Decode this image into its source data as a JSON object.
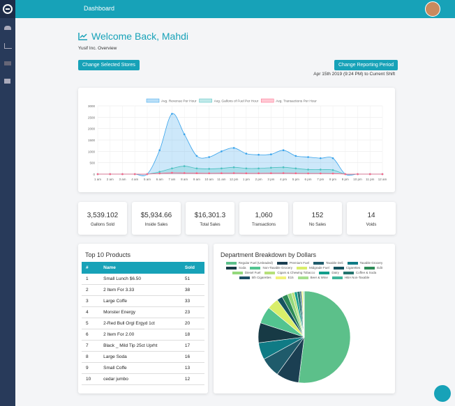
{
  "header": {
    "title": "Dashboard"
  },
  "welcome": {
    "title": "Welcome Back, Mahdi",
    "subtitle": "Yusif Inc. Overview"
  },
  "buttons": [
    "Change Selected Stores",
    "Change Reporting Period"
  ],
  "period": "Apr 15th 2019 (9:24 PM) to Current Shift",
  "chart_data": [
    {
      "type": "line",
      "categories": [
        "1 am",
        "2 am",
        "3 am",
        "4 am",
        "5 am",
        "6 am",
        "7 am",
        "8 am",
        "9 am",
        "10 am",
        "11 am",
        "12 pm",
        "1 pm",
        "2 pm",
        "3 pm",
        "4 pm",
        "5 pm",
        "6 pm",
        "7 pm",
        "8 pm",
        "9 pm",
        "10 pm",
        "11 pm",
        "12 am"
      ],
      "ylim": [
        0,
        3000
      ],
      "yticks": [
        0,
        500,
        1000,
        1500,
        2000,
        2500,
        3000
      ],
      "grid": true,
      "series": [
        {
          "name": "Avg. Revenue Per Hour",
          "color": "#36a2eb",
          "values": [
            0,
            0,
            0,
            0,
            0,
            1050,
            2650,
            1750,
            800,
            750,
            1000,
            1150,
            900,
            850,
            870,
            1050,
            800,
            750,
            700,
            700,
            0,
            0,
            0,
            0
          ]
        },
        {
          "name": "Avg. Gallons of Fuel Per Hour",
          "color": "#4bc0c0",
          "values": [
            0,
            0,
            0,
            0,
            0,
            100,
            250,
            350,
            250,
            230,
            250,
            300,
            250,
            250,
            280,
            300,
            250,
            200,
            200,
            180,
            0,
            0,
            0,
            0
          ]
        },
        {
          "name": "Avg. Transactions Per Hour",
          "color": "#ff6384",
          "values": [
            0,
            0,
            0,
            0,
            0,
            30,
            60,
            50,
            40,
            35,
            40,
            45,
            35,
            35,
            40,
            45,
            35,
            30,
            30,
            25,
            0,
            0,
            0,
            0
          ]
        }
      ]
    },
    {
      "type": "pie",
      "title": "Department Breakdown by Dollars",
      "categories": [
        "Regular Fuel (Unleaded)",
        "Premium Fuel",
        "Taxable Deli",
        "Taxable Grocery",
        "Soda",
        "Non-Taxable Grocery",
        "Midgrade Fuel",
        "Cigarettes",
        "Edit",
        "Diesel Fuel",
        "Cigars & Chewing Tobacco",
        "Dairy",
        "Coffee & Soda",
        "5th Cigarettes",
        "E15",
        "Beer & Wine",
        "HBA Non-Taxable"
      ],
      "colors": [
        "#5cc08a",
        "#1b3f52",
        "#1f5b6b",
        "#0f7b85",
        "#173a45",
        "#53c490",
        "#d9ee6a",
        "#16545f",
        "#2e8b57",
        "#93d87c",
        "#b6e07a",
        "#139e8c",
        "#24746e",
        "#1c4f66",
        "#f2f27a",
        "#a6df8f",
        "#3fb59a"
      ],
      "values": [
        52,
        8,
        7,
        6,
        7,
        6,
        4,
        2,
        2,
        1.5,
        1,
        1,
        1,
        0.5,
        0.5,
        0.3,
        0.2
      ]
    }
  ],
  "stats": [
    {
      "value": "3,539.102",
      "label": "Gallons Sold"
    },
    {
      "value": "$5,934.66",
      "label": "Inside Sales"
    },
    {
      "value": "$16,301.3",
      "label": "Total Sales"
    },
    {
      "value": "1,060",
      "label": "Transactions"
    },
    {
      "value": "152",
      "label": "No Sales"
    },
    {
      "value": "14",
      "label": "Voids"
    }
  ],
  "products": {
    "title": "Top 10 Products",
    "columns": [
      "#",
      "Name",
      "Sold"
    ],
    "rows": [
      [
        1,
        "Small Lunch $6.50",
        51
      ],
      [
        2,
        "2 Item For 3.33",
        38
      ],
      [
        3,
        "Large Coffe",
        33
      ],
      [
        4,
        "Monster Energy",
        23
      ],
      [
        5,
        "2-Red Bull Orgl Ergyd 1ct",
        20
      ],
      [
        6,
        "2 Item For 2.00",
        18
      ],
      [
        7,
        "Black _ Mild Tip 25ct Uprht",
        17
      ],
      [
        8,
        "Large Soda",
        16
      ],
      [
        9,
        "Small Coffe",
        13
      ],
      [
        10,
        "cedar jumbo",
        12
      ]
    ]
  }
}
